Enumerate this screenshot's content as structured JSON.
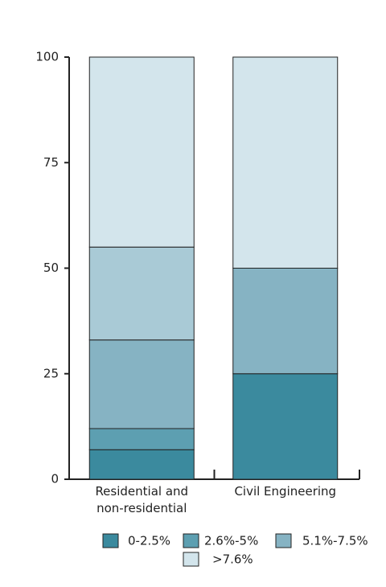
{
  "chart_data": {
    "type": "stacked_bar",
    "categories": [
      "Residential and non-residential",
      "Civil Engineering"
    ],
    "series": [
      {
        "name": "0-2.5%",
        "color": "#3b8a9e",
        "values": [
          7,
          25
        ]
      },
      {
        "name": "2.6%-5%",
        "color": "#5d9fb1",
        "values": [
          5,
          0
        ]
      },
      {
        "name": "5.1%-7.5%",
        "color": "#86b3c3",
        "values": [
          21,
          25
        ]
      },
      {
        "name": null,
        "color": "#a9cad6",
        "values": [
          22,
          0
        ]
      },
      {
        "name": ">7.6%",
        "color": "#d3e5ec",
        "values": [
          45,
          50
        ]
      }
    ],
    "ylim": [
      0,
      100
    ],
    "yticks": [
      0,
      25,
      50,
      75,
      100
    ]
  }
}
